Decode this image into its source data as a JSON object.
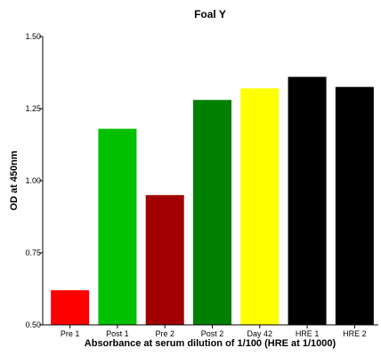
{
  "chart_data": {
    "type": "bar",
    "title": "Foal Y",
    "xlabel": "Absorbance at serum dilution of 1/100 (HRE at 1/1000)",
    "ylabel": "OD at 450nm",
    "ylim": [
      0.5,
      1.5
    ],
    "yticks": [
      "0.50",
      "0.75",
      "1.00",
      "1.25",
      "1.50"
    ],
    "categories": [
      "Pre 1",
      "Post 1",
      "Pre 2",
      "Post 2",
      "Day 42",
      "HRE 1",
      "HRE 2"
    ],
    "values": [
      0.62,
      1.18,
      0.95,
      1.28,
      1.32,
      1.36,
      1.325
    ],
    "colors": [
      "#ff0000",
      "#00c000",
      "#a00000",
      "#008000",
      "#ffff00",
      "#000000",
      "#000000"
    ],
    "grid": false,
    "legend": false
  }
}
